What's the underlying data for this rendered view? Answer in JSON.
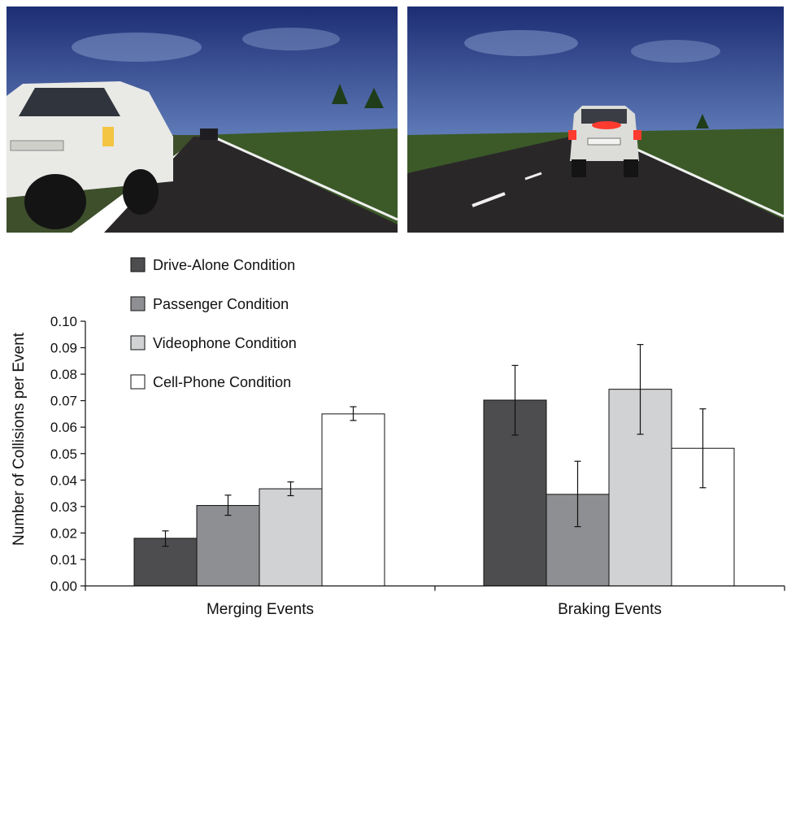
{
  "chart_data": {
    "type": "bar",
    "ylabel": "Number of Collisions per Event",
    "xlabel": "",
    "categories": [
      "Merging Events",
      "Braking Events"
    ],
    "ylim": [
      0,
      0.1
    ],
    "yticks": [
      "0.00",
      "0.01",
      "0.02",
      "0.03",
      "0.04",
      "0.05",
      "0.06",
      "0.07",
      "0.08",
      "0.09",
      "0.10"
    ],
    "grid": false,
    "legend_position": "top-left",
    "series": [
      {
        "name": "Drive-Alone Condition",
        "color": "#4d4d4f",
        "values": [
          0.018,
          0.0702
        ],
        "error_low": [
          0.015,
          0.057
        ],
        "error_high": [
          0.0208,
          0.0833
        ]
      },
      {
        "name": "Passenger Condition",
        "color": "#8e8f92",
        "values": [
          0.0304,
          0.0346
        ],
        "error_low": [
          0.0267,
          0.0224
        ],
        "error_high": [
          0.0343,
          0.0471
        ]
      },
      {
        "name": "Videophone Condition",
        "color": "#d1d2d4",
        "values": [
          0.0367,
          0.0743
        ],
        "error_low": [
          0.0341,
          0.0573
        ],
        "error_high": [
          0.0393,
          0.0912
        ]
      },
      {
        "name": "Cell-Phone Condition",
        "color": "#ffffff",
        "values": [
          0.065,
          0.052
        ],
        "error_low": [
          0.0625,
          0.0371
        ],
        "error_high": [
          0.0677,
          0.0669
        ]
      }
    ]
  },
  "scenes": [
    {
      "name": "merging-event-scene",
      "sky": "#2c3f86",
      "grass": "#3b5a28",
      "road": "#2a2729",
      "car": "#e9e9e6"
    },
    {
      "name": "braking-event-scene",
      "sky": "#2c3f86",
      "grass": "#3b5a28",
      "road": "#2a2729",
      "car": "#dcdcd8",
      "brake_light": "#ff3a2e"
    }
  ]
}
